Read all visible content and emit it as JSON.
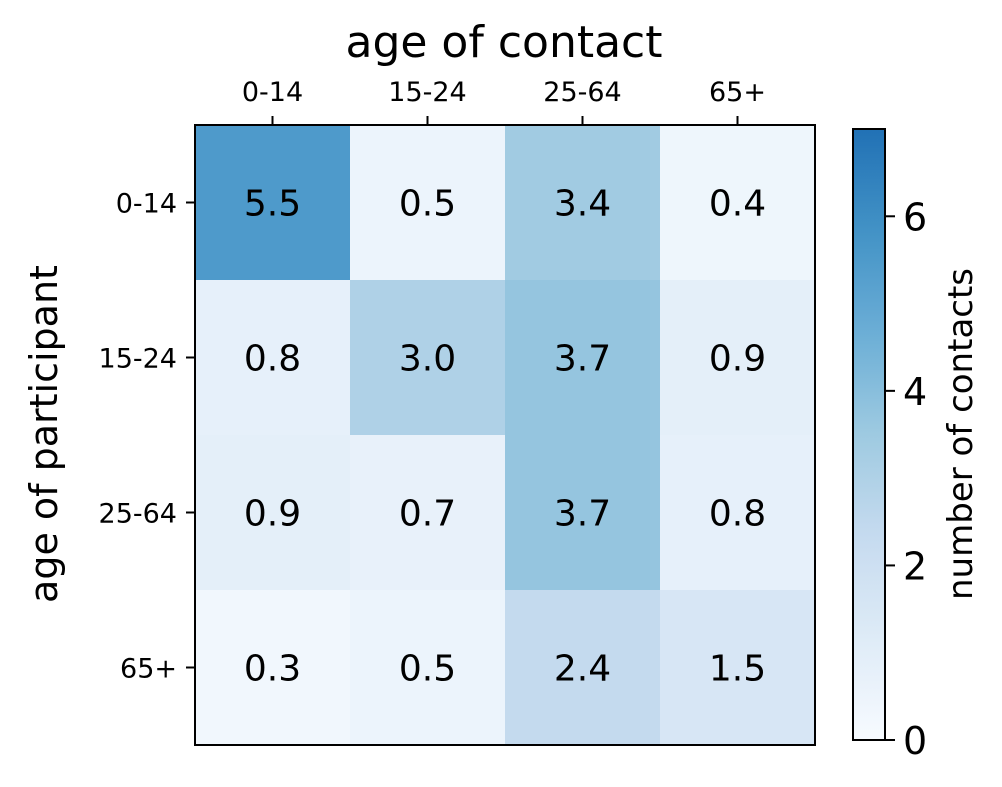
{
  "chart_data": {
    "type": "heatmap",
    "title": "",
    "xlabel": "age of contact",
    "ylabel": "age of participant",
    "x_categories": [
      "0-14",
      "15-24",
      "25-64",
      "65+"
    ],
    "y_categories": [
      "0-14",
      "15-24",
      "25-64",
      "65+"
    ],
    "values": [
      [
        5.5,
        0.5,
        3.4,
        0.4
      ],
      [
        0.8,
        3.0,
        3.7,
        0.9
      ],
      [
        0.9,
        0.7,
        3.7,
        0.8
      ],
      [
        0.3,
        0.5,
        2.4,
        1.5
      ]
    ],
    "value_labels": [
      [
        "5.5",
        "0.5",
        "3.4",
        "0.4"
      ],
      [
        "0.8",
        "3.0",
        "3.7",
        "0.9"
      ],
      [
        "0.9",
        "0.7",
        "3.7",
        "0.8"
      ],
      [
        "0.3",
        "0.5",
        "2.4",
        "1.5"
      ]
    ],
    "colorbar": {
      "label": "number of contacts",
      "range": [
        0,
        7
      ],
      "ticks": [
        0,
        2,
        4,
        6
      ],
      "tick_labels": [
        "0",
        "2",
        "4",
        "6"
      ],
      "colormap": "Blues",
      "color_low": "#f7fbff",
      "color_high": "#2171b5"
    },
    "x_axis_position": "top",
    "grid": false
  }
}
